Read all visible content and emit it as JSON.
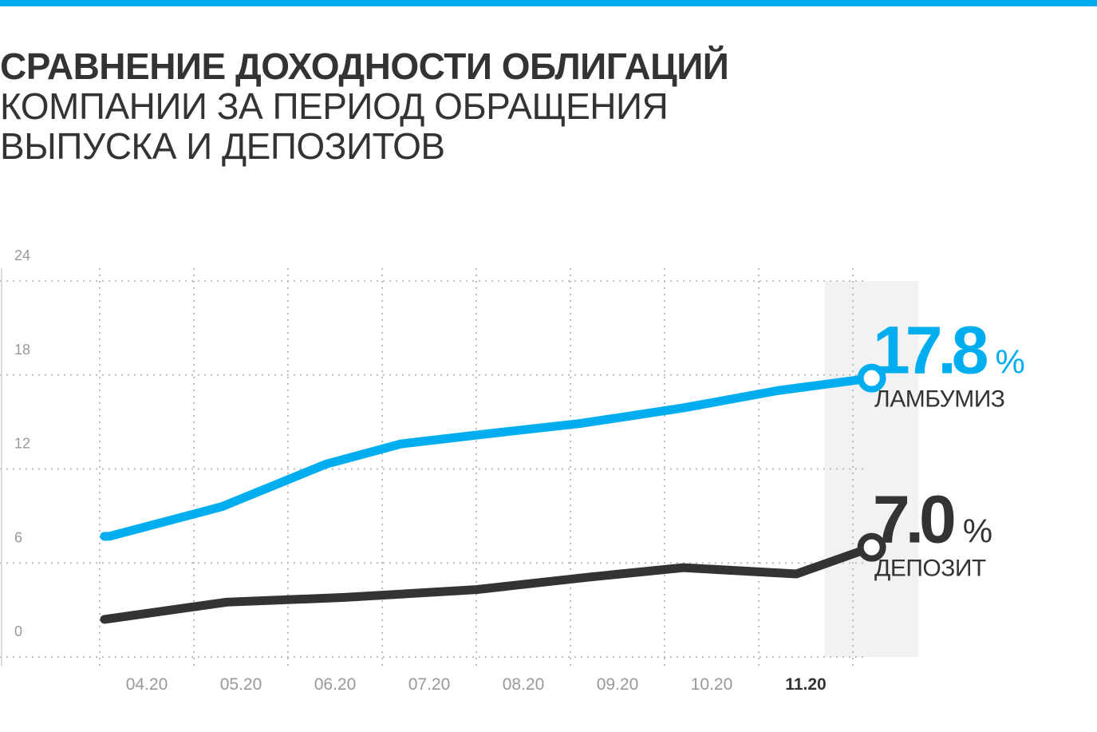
{
  "header": {
    "title_bold": "СРАВНЕНИЕ ДОХОДНОСТИ ОБЛИГАЦИЙ",
    "title_line2": "КОМПАНИИ ЗА ПЕРИОД ОБРАЩЕНИЯ",
    "title_line3": "ВЫПУСКА И ДЕПОЗИТОВ"
  },
  "colors": {
    "accent": "#00aeef",
    "dark": "#333333",
    "grid": "#bbbbbb",
    "highlight": "#f2f2f2"
  },
  "chart_data": {
    "type": "line",
    "title": "СРАВНЕНИЕ ДОХОДНОСТИ ОБЛИГАЦИЙ КОМПАНИИ ЗА ПЕРИОД ОБРАЩЕНИЯ ВЫПУСКА И ДЕПОЗИТОВ",
    "xlabel": "",
    "ylabel": "",
    "categories": [
      "04.20",
      "05.20",
      "06.20",
      "07.20",
      "08.20",
      "09.20",
      "10.20",
      "11.20"
    ],
    "highlight_category": "11.20",
    "ylim": [
      0,
      24
    ],
    "yticks": [
      0,
      6,
      12,
      18,
      24
    ],
    "grid": true,
    "series": [
      {
        "name": "ЛАМБУМИЗ",
        "color": "#00aeef",
        "x": [
          0.05,
          0.1,
          1.3,
          2.4,
          3.2,
          4.2,
          5.1,
          6.2,
          7.2,
          8.2
        ],
        "y": [
          7.7,
          7.7,
          9.6,
          12.3,
          13.6,
          14.3,
          14.9,
          15.9,
          17.0,
          17.8
        ]
      },
      {
        "name": "ДЕПОЗИТ",
        "color": "#333333",
        "x": [
          0.05,
          0.05,
          1.35,
          2.6,
          4.0,
          5.2,
          6.2,
          7.4,
          8.2
        ],
        "y": [
          2.4,
          2.4,
          3.5,
          3.8,
          4.3,
          5.1,
          5.7,
          5.3,
          7.0
        ]
      }
    ],
    "end_labels": [
      {
        "value": "17.8",
        "unit": "%",
        "name": "ЛАМБУМИЗ"
      },
      {
        "value": "7.0",
        "unit": "%",
        "name": "ДЕПОЗИТ"
      }
    ]
  }
}
